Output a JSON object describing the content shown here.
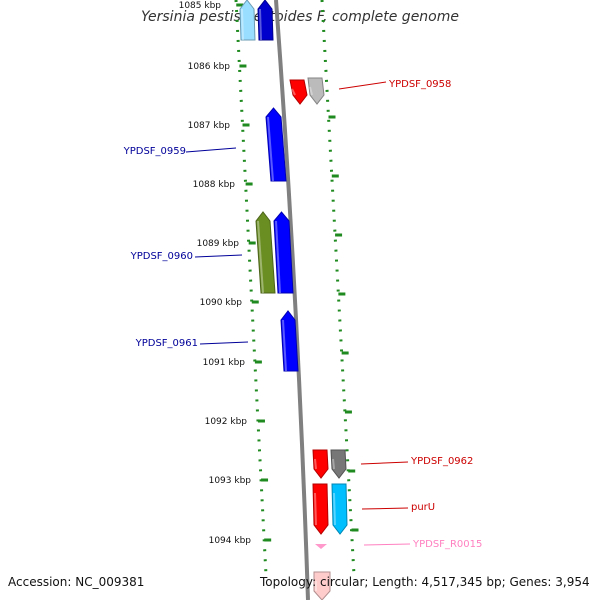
{
  "title": "Yersinia pestis Pestoides F, complete genome",
  "accession_text": "Accession: NC_009381",
  "summary_text": "Topology: circular; Length: 4,517,345 bp; Genes: 3,954",
  "colors": {
    "backbone": "#808080",
    "tick": "#1f8a1f",
    "dots": "#1f8a1f",
    "forward_label": "#000099",
    "reverse_label": "#cc0000",
    "rna_label": "#ff80c0"
  },
  "ruler": [
    "1085 kbp",
    "1086 kbp",
    "1087 kbp",
    "1088 kbp",
    "1089 kbp",
    "1090 kbp",
    "1091 kbp",
    "1092 kbp",
    "1093 kbp",
    "1094 kbp"
  ],
  "genes": [
    {
      "label": "YPDSF_0958",
      "strand": "reverse",
      "color": "#ff0000",
      "kind": "gene"
    },
    {
      "label": "",
      "strand": "reverse",
      "color": "#bbbbbb",
      "kind": "gene"
    },
    {
      "label": "YPDSF_0959",
      "strand": "forward",
      "color": "#0000ff",
      "kind": "gene"
    },
    {
      "label": "",
      "strand": "forward",
      "color": "#6b8e23",
      "kind": "gene"
    },
    {
      "label": "YPDSF_0960",
      "strand": "forward",
      "color": "#0000ff",
      "kind": "gene"
    },
    {
      "label": "YPDSF_0961",
      "strand": "forward",
      "color": "#0000ff",
      "kind": "gene"
    },
    {
      "label": "YPDSF_0962",
      "strand": "reverse",
      "color": "#ff0000",
      "kind": "gene"
    },
    {
      "label": "",
      "strand": "reverse",
      "color": "#777777",
      "kind": "gene"
    },
    {
      "label": "purU",
      "strand": "reverse",
      "color": "#ff0000",
      "kind": "gene"
    },
    {
      "label": "",
      "strand": "reverse",
      "color": "#00bfff",
      "kind": "gene"
    },
    {
      "label": "YPDSF_R0015",
      "strand": "reverse",
      "color": "#ff99cc",
      "kind": "rna"
    },
    {
      "label": "",
      "strand": "forward",
      "color": "#99ddff",
      "kind": "gene"
    },
    {
      "label": "",
      "strand": "forward",
      "color": "#0000cc",
      "kind": "gene"
    },
    {
      "label": "",
      "strand": "reverse",
      "color": "#ffcccc",
      "kind": "gene"
    }
  ]
}
